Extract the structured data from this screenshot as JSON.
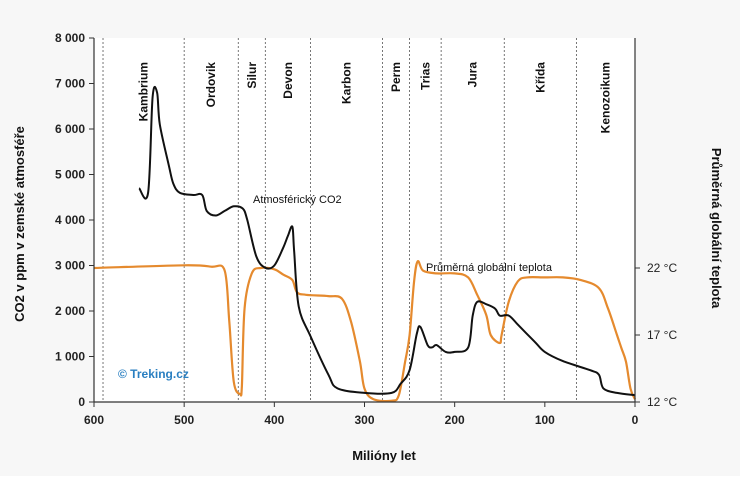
{
  "credit": "© Treking.cz",
  "chart_data": {
    "type": "line",
    "title": "",
    "xlabel": "Milióny let",
    "ylabel": "CO2 v ppm v zemské atmosféře",
    "y2label": "Průměrná globální teplota",
    "xlim": [
      600,
      0
    ],
    "ylim": [
      0,
      8000
    ],
    "x_ticks": [
      "600",
      "500",
      "400",
      "300",
      "200",
      "100",
      "0"
    ],
    "y_ticks": [
      "0",
      "1 000",
      "2 000",
      "3 000",
      "4 000",
      "5 000",
      "6 000",
      "7 000",
      "8 000"
    ],
    "y2_ticks": [
      {
        "label": "22 °C",
        "value": 22
      },
      {
        "label": "17 °C",
        "value": 17
      },
      {
        "label": "12 °C",
        "value": 12
      }
    ],
    "y2lim": [
      12,
      22
    ],
    "periods": [
      {
        "name": "Kambrium",
        "start": 590,
        "end": 500
      },
      {
        "name": "Ordovik",
        "start": 500,
        "end": 440
      },
      {
        "name": "Silur",
        "start": 440,
        "end": 410
      },
      {
        "name": "Devon",
        "start": 410,
        "end": 360
      },
      {
        "name": "Karbon",
        "start": 360,
        "end": 280
      },
      {
        "name": "Perm",
        "start": 280,
        "end": 250
      },
      {
        "name": "Trias",
        "start": 250,
        "end": 215
      },
      {
        "name": "Jura",
        "start": 215,
        "end": 145
      },
      {
        "name": "Křída",
        "start": 145,
        "end": 65
      },
      {
        "name": "Kenozoikum",
        "start": 65,
        "end": 0
      }
    ],
    "series": [
      {
        "name": "Atmosférický CO2",
        "axis": "left",
        "color": "#111111",
        "points": [
          [
            550,
            4700
          ],
          [
            540,
            4600
          ],
          [
            535,
            6700
          ],
          [
            530,
            6800
          ],
          [
            527,
            6100
          ],
          [
            517,
            5200
          ],
          [
            512,
            4800
          ],
          [
            505,
            4600
          ],
          [
            490,
            4550
          ],
          [
            480,
            4550
          ],
          [
            475,
            4200
          ],
          [
            465,
            4100
          ],
          [
            455,
            4200
          ],
          [
            445,
            4300
          ],
          [
            435,
            4250
          ],
          [
            430,
            4000
          ],
          [
            420,
            3200
          ],
          [
            410,
            2950
          ],
          [
            400,
            3000
          ],
          [
            390,
            3400
          ],
          [
            385,
            3650
          ],
          [
            380,
            3850
          ],
          [
            378,
            3300
          ],
          [
            373,
            2100
          ],
          [
            360,
            1450
          ],
          [
            340,
            600
          ],
          [
            330,
            300
          ],
          [
            300,
            200
          ],
          [
            270,
            200
          ],
          [
            260,
            400
          ],
          [
            250,
            700
          ],
          [
            242,
            1500
          ],
          [
            238,
            1650
          ],
          [
            230,
            1250
          ],
          [
            225,
            1200
          ],
          [
            220,
            1250
          ],
          [
            210,
            1100
          ],
          [
            200,
            1100
          ],
          [
            185,
            1200
          ],
          [
            180,
            1900
          ],
          [
            175,
            2200
          ],
          [
            165,
            2150
          ],
          [
            155,
            2050
          ],
          [
            150,
            1900
          ],
          [
            140,
            1900
          ],
          [
            130,
            1700
          ],
          [
            120,
            1500
          ],
          [
            110,
            1300
          ],
          [
            100,
            1100
          ],
          [
            80,
            900
          ],
          [
            50,
            700
          ],
          [
            40,
            600
          ],
          [
            35,
            300
          ],
          [
            20,
            200
          ],
          [
            0,
            150
          ]
        ]
      },
      {
        "name": "Průměrná globální teplota",
        "axis": "right",
        "color": "#e58a2e",
        "points": [
          [
            600,
            22
          ],
          [
            500,
            22.2
          ],
          [
            470,
            22.1
          ],
          [
            455,
            21.8
          ],
          [
            450,
            18
          ],
          [
            445,
            13.5
          ],
          [
            438,
            12.6
          ],
          [
            436,
            13.2
          ],
          [
            433,
            19
          ],
          [
            425,
            21.6
          ],
          [
            415,
            22
          ],
          [
            400,
            21.9
          ],
          [
            390,
            21.5
          ],
          [
            380,
            21.1
          ],
          [
            375,
            20.2
          ],
          [
            365,
            20
          ],
          [
            340,
            19.9
          ],
          [
            325,
            19.7
          ],
          [
            315,
            18
          ],
          [
            305,
            15
          ],
          [
            300,
            13
          ],
          [
            290,
            12.2
          ],
          [
            270,
            12.1
          ],
          [
            262,
            12.5
          ],
          [
            255,
            15
          ],
          [
            250,
            17
          ],
          [
            245,
            21
          ],
          [
            241,
            22.5
          ],
          [
            235,
            21.8
          ],
          [
            220,
            21.6
          ],
          [
            200,
            21.6
          ],
          [
            185,
            21.3
          ],
          [
            175,
            20
          ],
          [
            165,
            18.5
          ],
          [
            160,
            17
          ],
          [
            150,
            16.4
          ],
          [
            148,
            17
          ],
          [
            140,
            19.5
          ],
          [
            130,
            21
          ],
          [
            120,
            21.3
          ],
          [
            100,
            21.3
          ],
          [
            80,
            21.3
          ],
          [
            60,
            21.1
          ],
          [
            40,
            20.5
          ],
          [
            30,
            19
          ],
          [
            20,
            17
          ],
          [
            15,
            16
          ],
          [
            10,
            15
          ],
          [
            5,
            13
          ],
          [
            0,
            12.2
          ]
        ]
      }
    ]
  }
}
